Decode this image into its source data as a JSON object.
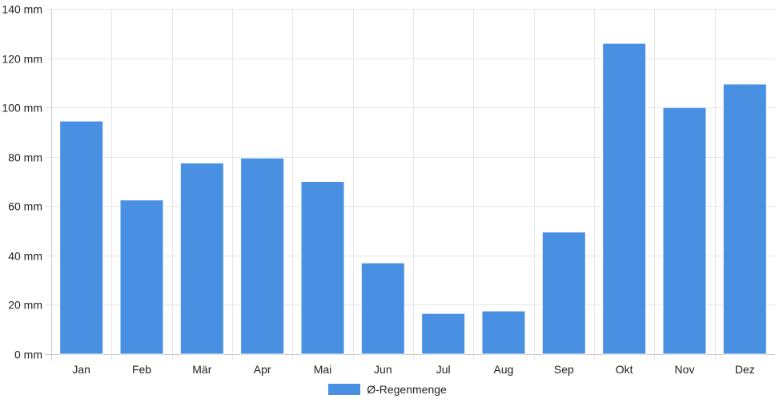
{
  "chart_data": {
    "type": "bar",
    "categories": [
      "Jan",
      "Feb",
      "Mär",
      "Apr",
      "Mai",
      "Jun",
      "Jul",
      "Aug",
      "Sep",
      "Okt",
      "Nov",
      "Dez"
    ],
    "series": [
      {
        "name": "Ø-Regenmenge",
        "values": [
          94.5,
          62.5,
          77.5,
          79.5,
          70,
          37,
          16.5,
          17.5,
          49.5,
          126,
          100,
          109.5
        ],
        "color": "#4a90e2"
      }
    ],
    "yticks": [
      "0 mm",
      "20 mm",
      "40 mm",
      "60 mm",
      "80 mm",
      "100 mm",
      "120 mm",
      "140 mm"
    ],
    "ytick_values": [
      0,
      20,
      40,
      60,
      80,
      100,
      120,
      140
    ],
    "ylim": [
      0,
      140
    ],
    "title": "",
    "xlabel": "",
    "ylabel": "",
    "grid": true,
    "legend_position": "bottom-center"
  }
}
